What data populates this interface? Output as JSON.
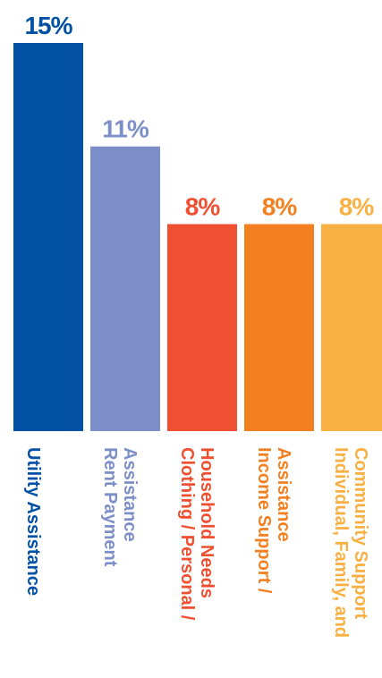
{
  "chart_data": {
    "type": "bar",
    "categories": [
      [
        "Utility Assistance"
      ],
      [
        "Rent Payment",
        "Assistance"
      ],
      [
        "Clothing / Personal /",
        "Household Needs"
      ],
      [
        "Income Support /",
        "Assistance"
      ],
      [
        "Individual, Family, and",
        "Community Support"
      ]
    ],
    "values": [
      15,
      11,
      8,
      8,
      8
    ],
    "value_labels": [
      "15%",
      "11%",
      "8%",
      "8%",
      "8%"
    ],
    "colors": [
      "#0351a5",
      "#7d8fc8",
      "#ef5032",
      "#f38020",
      "#f9b042"
    ],
    "ylim": [
      0,
      15
    ],
    "title": "",
    "xlabel": "",
    "ylabel": "",
    "grid": false,
    "legend": "none"
  }
}
